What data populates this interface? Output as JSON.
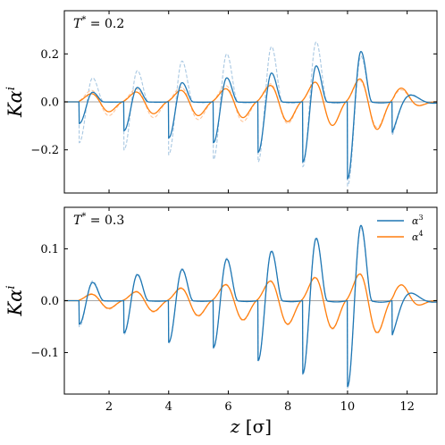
{
  "colors": {
    "alpha3": "#1f77b4",
    "alpha4": "#ff7f0e",
    "alpha3_faint": "#a9c8e2",
    "alpha4_faint": "#ffc59a",
    "axes": "#000000"
  },
  "figure": {
    "xlabel": "z [σ]",
    "xlabel_parts": {
      "var": "z",
      "unit": "[σ]"
    },
    "xticks": [
      2,
      4,
      6,
      8,
      10,
      12
    ],
    "xtick_labels": [
      "2",
      "4",
      "6",
      "8",
      "10",
      "12"
    ]
  },
  "chart_data": [
    {
      "type": "line",
      "annotation": "T* = 0.2",
      "annotation_parts": {
        "sym": "T",
        "sup": "*",
        "eq": " = 0.2"
      },
      "ylabel": "Kα^i",
      "ylabel_parts": {
        "base": "Kα",
        "sup": "i"
      },
      "xlim": [
        0.5,
        13.0
      ],
      "ylim": [
        -0.38,
        0.38
      ],
      "yticks": [
        -0.2,
        0.0,
        0.2
      ],
      "ytick_labels": [
        "−0.2",
        "0.0",
        "0.2"
      ],
      "grid": false,
      "legend": null,
      "series": [
        {
          "key": "a3",
          "style": "solid",
          "start": 1.0,
          "period": 1.5,
          "jumps": [
            -0.09,
            -0.12,
            -0.15,
            -0.17,
            -0.21,
            -0.25,
            -0.32
          ],
          "peaks": [
            0.04,
            0.06,
            0.08,
            0.1,
            0.12,
            0.15,
            0.21
          ],
          "decay": 11.8
        },
        {
          "key": "a4",
          "style": "solid",
          "start": 1.0,
          "period": 1.5,
          "amps": [
            0.05,
            0.06,
            0.07,
            0.08,
            0.1,
            0.12,
            0.14,
            0.16
          ]
        },
        {
          "key": "a3_ref",
          "style": "dashed",
          "start": 1.0,
          "period": 1.5,
          "jumps": [
            -0.17,
            -0.2,
            -0.22,
            -0.24,
            -0.25,
            -0.27,
            -0.35
          ],
          "peaks": [
            0.1,
            0.13,
            0.17,
            0.2,
            0.23,
            0.25,
            0.19
          ],
          "decay": 11.8
        },
        {
          "key": "a4_ref",
          "style": "dashed",
          "start": 1.0,
          "period": 1.5,
          "amps": [
            0.07,
            0.08,
            0.09,
            0.1,
            0.11,
            0.12,
            0.13,
            0.14
          ]
        }
      ]
    },
    {
      "type": "line",
      "annotation": "T* = 0.3",
      "annotation_parts": {
        "sym": "T",
        "sup": "*",
        "eq": " = 0.3"
      },
      "ylabel": "Kα^i",
      "ylabel_parts": {
        "base": "Kα",
        "sup": "i"
      },
      "xlim": [
        0.5,
        13.0
      ],
      "ylim": [
        -0.18,
        0.18
      ],
      "yticks": [
        -0.1,
        0.0,
        0.1
      ],
      "ytick_labels": [
        "−0.1",
        "0.0",
        "0.1"
      ],
      "grid": false,
      "legend": {
        "position": "top-right",
        "entries": [
          {
            "key": "a3",
            "base": "α",
            "sup": "3"
          },
          {
            "key": "a4",
            "base": "α",
            "sup": "4"
          }
        ]
      },
      "series": [
        {
          "key": "a3",
          "style": "solid",
          "start": 1.0,
          "period": 1.5,
          "jumps": [
            -0.045,
            -0.062,
            -0.08,
            -0.09,
            -0.115,
            -0.14,
            -0.165
          ],
          "peaks": [
            0.035,
            0.05,
            0.06,
            0.08,
            0.095,
            0.12,
            0.145
          ],
          "decay": 11.8
        },
        {
          "key": "a4",
          "style": "solid",
          "start": 1.0,
          "period": 1.5,
          "amps": [
            0.018,
            0.025,
            0.035,
            0.045,
            0.055,
            0.065,
            0.075,
            0.085
          ]
        },
        {
          "key": "a3_ref",
          "style": "dashed",
          "start": 1.0,
          "period": 1.5,
          "jumps": [
            -0.05,
            -0.065,
            -0.082,
            -0.092,
            -0.117,
            -0.142,
            -0.168
          ],
          "peaks": [
            0.038,
            0.052,
            0.062,
            0.082,
            0.097,
            0.122,
            0.14
          ],
          "decay": 11.8
        },
        {
          "key": "a4_ref",
          "style": "dashed",
          "start": 1.0,
          "period": 1.5,
          "amps": [
            0.02,
            0.027,
            0.037,
            0.047,
            0.057,
            0.067,
            0.077,
            0.087
          ]
        }
      ]
    }
  ]
}
